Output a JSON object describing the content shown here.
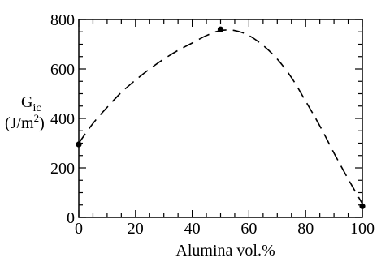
{
  "chart_data": {
    "type": "scatter",
    "xlabel": "Alumina vol.%",
    "ylabel": {
      "symbol": "G",
      "subscript": "ic",
      "unit_prefix": "(J/m",
      "unit_power": "2",
      "unit_suffix": ")"
    },
    "xlim": [
      0,
      100
    ],
    "ylim": [
      0,
      800
    ],
    "xticks": [
      0,
      20,
      40,
      60,
      80,
      100
    ],
    "xtick_labels": [
      "0",
      "20",
      "40",
      "60",
      "80",
      "100"
    ],
    "yticks": [
      0,
      200,
      400,
      600,
      800
    ],
    "ytick_labels": [
      "0",
      "200",
      "400",
      "600",
      "800"
    ],
    "grid": false,
    "series": [
      {
        "kind": "points",
        "x": [
          0,
          50,
          100
        ],
        "y": [
          295,
          760,
          45
        ]
      },
      {
        "kind": "dashed-curve",
        "x": [
          0,
          5,
          10,
          15,
          20,
          25,
          30,
          35,
          40,
          45,
          50,
          55,
          60,
          65,
          70,
          75,
          80,
          85,
          90,
          95,
          100
        ],
        "y": [
          300,
          380,
          445,
          505,
          555,
          600,
          640,
          675,
          705,
          735,
          755,
          755,
          735,
          695,
          640,
          565,
          470,
          370,
          260,
          155,
          55
        ]
      }
    ]
  }
}
